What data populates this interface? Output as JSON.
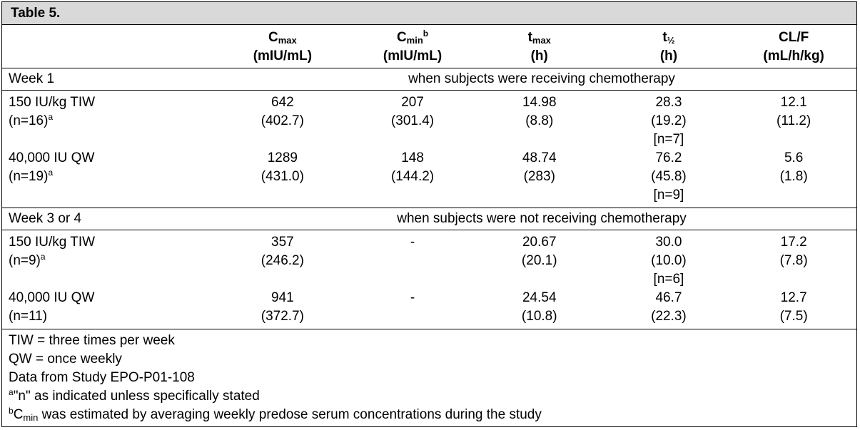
{
  "table": {
    "title": "Table 5.",
    "headers": [
      {
        "base": "C",
        "sub": "max",
        "sup": "",
        "unit": "(mIU/mL)"
      },
      {
        "base": "C",
        "sub": "min",
        "sup": "b",
        "unit": "(mIU/mL)"
      },
      {
        "base": "t",
        "sub": "max",
        "sup": "",
        "unit": "(h)"
      },
      {
        "base": "t",
        "sub": "½",
        "sup": "",
        "unit": "(h)"
      },
      {
        "base": "CL/F",
        "sub": "",
        "sup": "",
        "unit": "(mL/h/kg)"
      }
    ],
    "sections": [
      {
        "label": "Week 1",
        "description": "when subjects were receiving chemotherapy",
        "rows": [
          {
            "dose": "150 IU/kg TIW",
            "n": "(n=16)",
            "n_sup": "a",
            "cmax": [
              "642",
              "(402.7)"
            ],
            "cmin": [
              "207",
              "(301.4)"
            ],
            "tmax": [
              "14.98",
              "(8.8)"
            ],
            "thalf": [
              "28.3",
              "(19.2)",
              "[n=7]"
            ],
            "clf": [
              "12.1",
              "(11.2)"
            ]
          },
          {
            "dose": "40,000 IU QW",
            "n": "(n=19)",
            "n_sup": "a",
            "cmax": [
              "1289",
              "(431.0)"
            ],
            "cmin": [
              "148",
              "(144.2)"
            ],
            "tmax": [
              "48.74",
              "(283)"
            ],
            "thalf": [
              "76.2",
              "(45.8)",
              "[n=9]"
            ],
            "clf": [
              "5.6",
              "(1.8)"
            ]
          }
        ]
      },
      {
        "label": "Week 3 or 4",
        "description": "when subjects were not receiving chemotherapy",
        "rows": [
          {
            "dose": "150 IU/kg TIW",
            "n": "(n=9)",
            "n_sup": "a",
            "cmax": [
              "357",
              "(246.2)"
            ],
            "cmin": [
              "-"
            ],
            "tmax": [
              "20.67",
              "(20.1)"
            ],
            "thalf": [
              "30.0",
              "(10.0)",
              "[n=6]"
            ],
            "clf": [
              "17.2",
              "(7.8)"
            ]
          },
          {
            "dose": "40,000 IU QW",
            "n": "(n=11)",
            "n_sup": "",
            "cmax": [
              "941",
              "(372.7)"
            ],
            "cmin": [
              "-"
            ],
            "tmax": [
              "24.54",
              "(10.8)"
            ],
            "thalf": [
              "46.7",
              "(22.3)"
            ],
            "clf": [
              "12.7",
              "(7.5)"
            ]
          }
        ]
      }
    ],
    "footnotes": {
      "tiw": "TIW = three times per week",
      "qw": "QW = once weekly",
      "source": "Data from Study EPO-P01-108",
      "a_marker": "a",
      "a_text": "\"n\" as indicated unless specifically stated",
      "b_marker": "b",
      "b_base": "C",
      "b_sub": "min",
      "b_text": " was estimated by averaging weekly predose serum concentrations during the study"
    }
  }
}
